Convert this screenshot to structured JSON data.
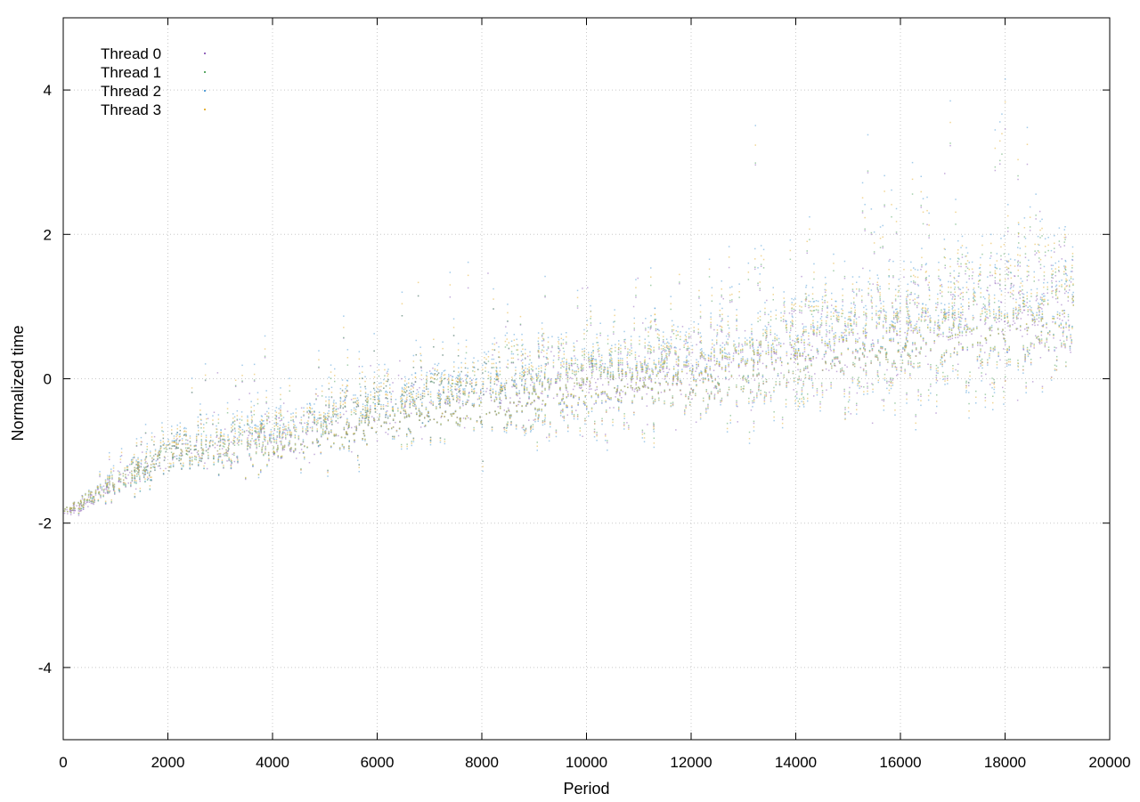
{
  "chart_data": {
    "type": "scatter",
    "title": "",
    "xlabel": "Period",
    "ylabel": "Normalized time",
    "xlim": [
      0,
      20000
    ],
    "ylim": [
      -5,
      5
    ],
    "x_ticks": [
      0,
      2000,
      4000,
      6000,
      8000,
      10000,
      12000,
      14000,
      16000,
      18000,
      20000
    ],
    "x_tick_labels": [
      "0",
      "2000",
      "4000",
      "6000",
      "8000",
      "10000",
      "12000",
      "14000",
      "16000",
      "18000",
      "20000"
    ],
    "y_ticks": [
      -4,
      -2,
      0,
      2,
      4
    ],
    "y_tick_labels": [
      "-4",
      "-2",
      "0",
      "2",
      "4"
    ],
    "grid": true,
    "grid_style": "dotted",
    "legend_position": "top-left",
    "point_count_per_series": 2400,
    "series": [
      {
        "name": "Thread 0",
        "color": "#9467bd",
        "trend": [
          [
            0,
            -1.88
          ],
          [
            2000,
            -1.05
          ],
          [
            4000,
            -0.8
          ],
          [
            6000,
            -0.45
          ],
          [
            8000,
            -0.2
          ],
          [
            10000,
            -0.05
          ],
          [
            12000,
            0.1
          ],
          [
            14000,
            0.35
          ],
          [
            16000,
            0.6
          ],
          [
            18000,
            0.8
          ],
          [
            19300,
            1.0
          ]
        ],
        "spread": [
          [
            0,
            0.05
          ],
          [
            2000,
            0.3
          ],
          [
            6000,
            0.45
          ],
          [
            12000,
            0.6
          ],
          [
            18000,
            0.9
          ],
          [
            19300,
            0.8
          ]
        ]
      },
      {
        "name": "Thread 1",
        "color": "#5aa866",
        "trend": [
          [
            0,
            -1.85
          ],
          [
            2000,
            -1.05
          ],
          [
            4000,
            -0.78
          ],
          [
            6000,
            -0.45
          ],
          [
            8000,
            -0.2
          ],
          [
            10000,
            -0.02
          ],
          [
            12000,
            0.12
          ],
          [
            14000,
            0.38
          ],
          [
            16000,
            0.62
          ],
          [
            18000,
            0.85
          ],
          [
            19300,
            1.05
          ]
        ],
        "spread": [
          [
            0,
            0.05
          ],
          [
            2000,
            0.3
          ],
          [
            6000,
            0.45
          ],
          [
            12000,
            0.6
          ],
          [
            18000,
            0.9
          ],
          [
            19300,
            0.8
          ]
        ]
      },
      {
        "name": "Thread 2",
        "color": "#56a0d8",
        "trend": [
          [
            0,
            -1.85
          ],
          [
            2000,
            -1.0
          ],
          [
            4000,
            -0.72
          ],
          [
            6000,
            -0.4
          ],
          [
            8000,
            -0.15
          ],
          [
            10000,
            0.0
          ],
          [
            12000,
            0.15
          ],
          [
            14000,
            0.4
          ],
          [
            16000,
            0.65
          ],
          [
            18000,
            0.9
          ],
          [
            19300,
            1.1
          ]
        ],
        "spread": [
          [
            0,
            0.05
          ],
          [
            2000,
            0.35
          ],
          [
            6000,
            0.55
          ],
          [
            12000,
            0.7
          ],
          [
            18000,
            1.1
          ],
          [
            19300,
            0.9
          ]
        ]
      },
      {
        "name": "Thread 3",
        "color": "#e6b43c",
        "trend": [
          [
            0,
            -1.85
          ],
          [
            2000,
            -1.0
          ],
          [
            4000,
            -0.75
          ],
          [
            6000,
            -0.42
          ],
          [
            8000,
            -0.18
          ],
          [
            10000,
            0.0
          ],
          [
            12000,
            0.12
          ],
          [
            14000,
            0.38
          ],
          [
            16000,
            0.62
          ],
          [
            18000,
            0.88
          ],
          [
            19300,
            1.05
          ]
        ],
        "spread": [
          [
            0,
            0.05
          ],
          [
            2000,
            0.3
          ],
          [
            6000,
            0.5
          ],
          [
            12000,
            0.65
          ],
          [
            18000,
            1.0
          ],
          [
            19300,
            0.85
          ]
        ]
      }
    ]
  }
}
